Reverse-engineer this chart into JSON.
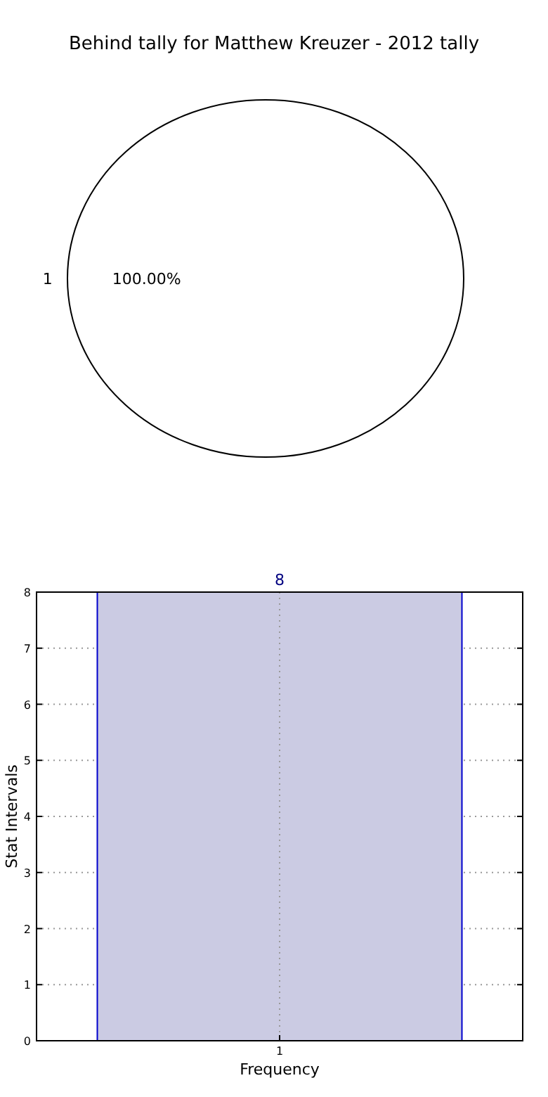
{
  "chart_data": [
    {
      "type": "pie",
      "title": "Behind tally for Matthew Kreuzer - 2012 tally",
      "categories": [
        "1"
      ],
      "values": [
        100
      ],
      "colors": [
        "#ffffff"
      ],
      "value_labels": [
        "100.00%"
      ]
    },
    {
      "type": "bar",
      "categories": [
        "1"
      ],
      "values": [
        8
      ],
      "color": "#cbcbe3",
      "data_labels": true,
      "xlabel": "Frequency",
      "ylabel": "Stat Intervals",
      "ylim": [
        0,
        8
      ],
      "yticks": [
        0,
        1,
        2,
        3,
        4,
        5,
        6,
        7,
        8
      ],
      "grid": true
    }
  ]
}
